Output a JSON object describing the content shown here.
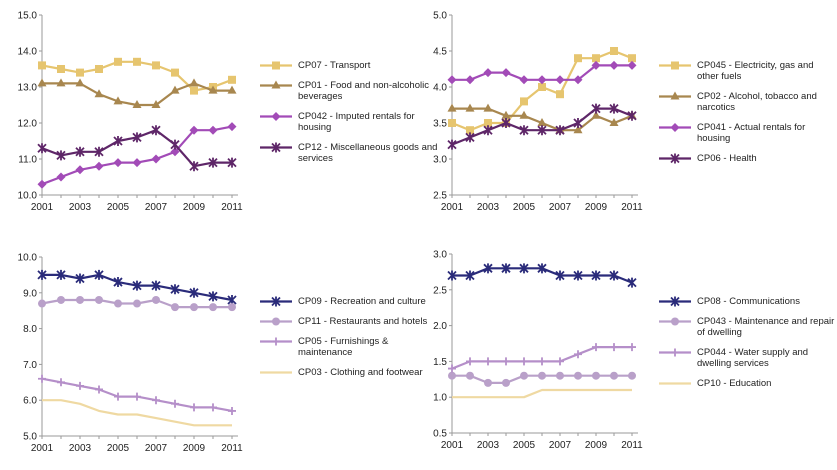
{
  "colors": {
    "gold": "#e6c56f",
    "brown": "#a8874f",
    "purple": "#a24bb7",
    "darkpurple": "#5e2668",
    "navy": "#2a2b7a",
    "lilac": "#b9a0c9",
    "lavender": "#b58fc9",
    "cream": "#efd9a2",
    "axis": "#9a9a9a"
  },
  "chart_data": [
    {
      "type": "line",
      "x": [
        2001,
        2002,
        2003,
        2004,
        2005,
        2006,
        2007,
        2008,
        2009,
        2010,
        2011
      ],
      "x_tick_labels": [
        "2001",
        "2003",
        "2005",
        "2007",
        "2009",
        "2011"
      ],
      "ylim": [
        10.0,
        15.0
      ],
      "y_tick_labels": [
        "10.0",
        "11.0",
        "12.0",
        "13.0",
        "14.0",
        "15.0"
      ],
      "grid": false,
      "legend_position": "right",
      "series": [
        {
          "name": "CP07 - Transport",
          "color": "gold",
          "marker": "square",
          "values": [
            13.6,
            13.5,
            13.4,
            13.5,
            13.7,
            13.7,
            13.6,
            13.4,
            12.9,
            13.0,
            13.2
          ]
        },
        {
          "name": "CP01 - Food and non-alcoholic beverages",
          "color": "brown",
          "marker": "triangle",
          "values": [
            13.1,
            13.1,
            13.1,
            12.8,
            12.6,
            12.5,
            12.5,
            12.9,
            13.1,
            12.9,
            12.9
          ]
        },
        {
          "name": "CP042 - Imputed rentals for housing",
          "color": "purple",
          "marker": "diamond",
          "values": [
            10.3,
            10.5,
            10.7,
            10.8,
            10.9,
            10.9,
            11.0,
            11.2,
            11.8,
            11.8,
            11.9
          ]
        },
        {
          "name": "CP12 - Miscellaneous goods and services",
          "color": "darkpurple",
          "marker": "x",
          "values": [
            11.3,
            11.1,
            11.2,
            11.2,
            11.5,
            11.6,
            11.8,
            11.4,
            10.8,
            10.9,
            10.9
          ]
        }
      ]
    },
    {
      "type": "line",
      "x": [
        2001,
        2002,
        2003,
        2004,
        2005,
        2006,
        2007,
        2008,
        2009,
        2010,
        2011
      ],
      "x_tick_labels": [
        "2001",
        "2003",
        "2005",
        "2007",
        "2009",
        "2011"
      ],
      "ylim": [
        2.5,
        5.0
      ],
      "y_tick_labels": [
        "2.5",
        "3.0",
        "3.5",
        "4.0",
        "4.5",
        "5.0"
      ],
      "grid": false,
      "legend_position": "right",
      "series": [
        {
          "name": "CP045 - Electricity, gas and other fuels",
          "color": "gold",
          "marker": "square",
          "values": [
            3.5,
            3.4,
            3.5,
            3.5,
            3.8,
            4.0,
            3.9,
            4.4,
            4.4,
            4.5,
            4.4
          ]
        },
        {
          "name": "CP02 - Alcohol, tobacco and narcotics",
          "color": "brown",
          "marker": "triangle",
          "values": [
            3.7,
            3.7,
            3.7,
            3.6,
            3.6,
            3.5,
            3.4,
            3.4,
            3.6,
            3.5,
            3.6
          ]
        },
        {
          "name": "CP041 - Actual rentals for housing",
          "color": "purple",
          "marker": "diamond",
          "values": [
            4.1,
            4.1,
            4.2,
            4.2,
            4.1,
            4.1,
            4.1,
            4.1,
            4.3,
            4.3,
            4.3
          ]
        },
        {
          "name": "CP06 - Health",
          "color": "darkpurple",
          "marker": "x",
          "values": [
            3.2,
            3.3,
            3.4,
            3.5,
            3.4,
            3.4,
            3.4,
            3.5,
            3.7,
            3.7,
            3.6
          ]
        }
      ]
    },
    {
      "type": "line",
      "x": [
        2001,
        2002,
        2003,
        2004,
        2005,
        2006,
        2007,
        2008,
        2009,
        2010,
        2011
      ],
      "x_tick_labels": [
        "2001",
        "2003",
        "2005",
        "2007",
        "2009",
        "2011"
      ],
      "ylim": [
        5.0,
        10.0
      ],
      "y_tick_labels": [
        "5.0",
        "6.0",
        "7.0",
        "8.0",
        "9.0",
        "10.0"
      ],
      "grid": false,
      "legend_position": "right",
      "series": [
        {
          "name": "CP09 - Recreation and culture",
          "color": "navy",
          "marker": "x",
          "values": [
            9.5,
            9.5,
            9.4,
            9.5,
            9.3,
            9.2,
            9.2,
            9.1,
            9.0,
            8.9,
            8.8
          ]
        },
        {
          "name": "CP11 - Restaurants and hotels",
          "color": "lilac",
          "marker": "circle",
          "values": [
            8.7,
            8.8,
            8.8,
            8.8,
            8.7,
            8.7,
            8.8,
            8.6,
            8.6,
            8.6,
            8.6
          ]
        },
        {
          "name": "CP05 - Furnishings & maintenance",
          "color": "lavender",
          "marker": "plus",
          "values": [
            6.6,
            6.5,
            6.4,
            6.3,
            6.1,
            6.1,
            6.0,
            5.9,
            5.8,
            5.8,
            5.7
          ]
        },
        {
          "name": "CP03 - Clothing and footwear",
          "color": "cream",
          "marker": "none",
          "values": [
            6.0,
            6.0,
            5.9,
            5.7,
            5.6,
            5.6,
            5.5,
            5.4,
            5.3,
            5.3,
            5.3
          ]
        }
      ]
    },
    {
      "type": "line",
      "x": [
        2001,
        2002,
        2003,
        2004,
        2005,
        2006,
        2007,
        2008,
        2009,
        2010,
        2011
      ],
      "x_tick_labels": [
        "2001",
        "2003",
        "2005",
        "2007",
        "2009",
        "2011"
      ],
      "ylim": [
        0.5,
        3.0
      ],
      "y_tick_labels": [
        "0.5",
        "1.0",
        "1.5",
        "2.0",
        "2.5",
        "3.0"
      ],
      "grid": false,
      "legend_position": "right",
      "series": [
        {
          "name": "CP08 - Communications",
          "color": "navy",
          "marker": "x",
          "values": [
            2.7,
            2.7,
            2.8,
            2.8,
            2.8,
            2.8,
            2.7,
            2.7,
            2.7,
            2.7,
            2.6
          ]
        },
        {
          "name": "CP043 - Maintenance and repair of dwelling",
          "color": "lilac",
          "marker": "circle",
          "values": [
            1.3,
            1.3,
            1.2,
            1.2,
            1.3,
            1.3,
            1.3,
            1.3,
            1.3,
            1.3,
            1.3
          ]
        },
        {
          "name": "CP044 - Water supply and dwelling services",
          "color": "lavender",
          "marker": "plus",
          "values": [
            1.4,
            1.5,
            1.5,
            1.5,
            1.5,
            1.5,
            1.5,
            1.6,
            1.7,
            1.7,
            1.7
          ]
        },
        {
          "name": "CP10 - Education",
          "color": "cream",
          "marker": "none",
          "values": [
            1.0,
            1.0,
            1.0,
            1.0,
            1.0,
            1.1,
            1.1,
            1.1,
            1.1,
            1.1,
            1.1
          ]
        }
      ]
    }
  ]
}
